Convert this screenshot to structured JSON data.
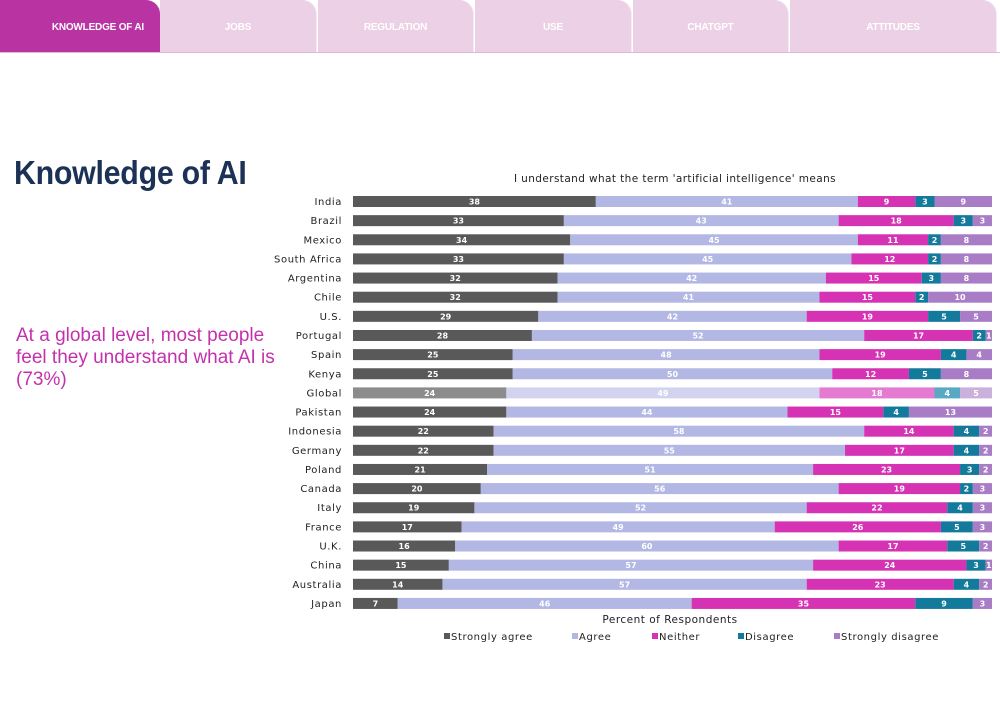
{
  "nav": {
    "tabs": [
      {
        "label": "KNOWLEDGE OF AI",
        "active": true
      },
      {
        "label": "JOBS",
        "active": false
      },
      {
        "label": "REGULATION",
        "active": false
      },
      {
        "label": "USE",
        "active": false
      },
      {
        "label": "CHATGPT",
        "active": false
      },
      {
        "label": "ATTITUDES",
        "active": false
      }
    ]
  },
  "page": {
    "title": "Knowledge of AI",
    "subtitle": "At a global level, most people feel they understand what AI is (73%)"
  },
  "colors": {
    "strongly_agree": "#595959",
    "agree": "#b3b7e3",
    "neither": "#d532b4",
    "disagree": "#147a9c",
    "strongly_disagree": "#a97cc6",
    "global_strongly_agree": "#8c8c8c",
    "global_agree": "#d2d4ef",
    "global_neither": "#e57bd0",
    "global_disagree": "#5aa9c3",
    "global_strongly_disagree": "#c9b0dd"
  },
  "chart_data": {
    "type": "bar",
    "orientation": "horizontal",
    "stacked": true,
    "title": "I understand what the term 'artificial intelligence' means",
    "xlabel": "Percent of Respondents",
    "ylabel": "",
    "xlim": [
      0,
      100
    ],
    "highlight_category": "Global",
    "legend_position": "bottom",
    "categories": [
      "India",
      "Brazil",
      "Mexico",
      "South Africa",
      "Argentina",
      "Chile",
      "U.S.",
      "Portugal",
      "Spain",
      "Kenya",
      "Global",
      "Pakistan",
      "Indonesia",
      "Germany",
      "Poland",
      "Canada",
      "Italy",
      "France",
      "U.K.",
      "China",
      "Australia",
      "Japan"
    ],
    "series": [
      {
        "name": "Strongly agree",
        "values": [
          38,
          33,
          34,
          33,
          32,
          32,
          29,
          28,
          25,
          25,
          24,
          24,
          22,
          22,
          21,
          20,
          19,
          17,
          16,
          15,
          14,
          7
        ]
      },
      {
        "name": "Agree",
        "values": [
          41,
          43,
          45,
          45,
          42,
          41,
          42,
          52,
          48,
          50,
          49,
          44,
          58,
          55,
          51,
          56,
          52,
          49,
          60,
          57,
          57,
          46
        ]
      },
      {
        "name": "Neither",
        "values": [
          9,
          18,
          11,
          12,
          15,
          15,
          19,
          17,
          19,
          12,
          18,
          15,
          14,
          17,
          23,
          19,
          22,
          26,
          17,
          24,
          23,
          35
        ]
      },
      {
        "name": "Disagree",
        "values": [
          3,
          3,
          2,
          2,
          3,
          2,
          5,
          2,
          4,
          5,
          4,
          4,
          4,
          4,
          3,
          2,
          4,
          5,
          5,
          3,
          4,
          9
        ]
      },
      {
        "name": "Strongly disagree",
        "values": [
          9,
          3,
          8,
          8,
          8,
          10,
          5,
          1,
          4,
          8,
          5,
          13,
          2,
          2,
          2,
          3,
          3,
          3,
          2,
          1,
          2,
          3
        ]
      }
    ]
  }
}
